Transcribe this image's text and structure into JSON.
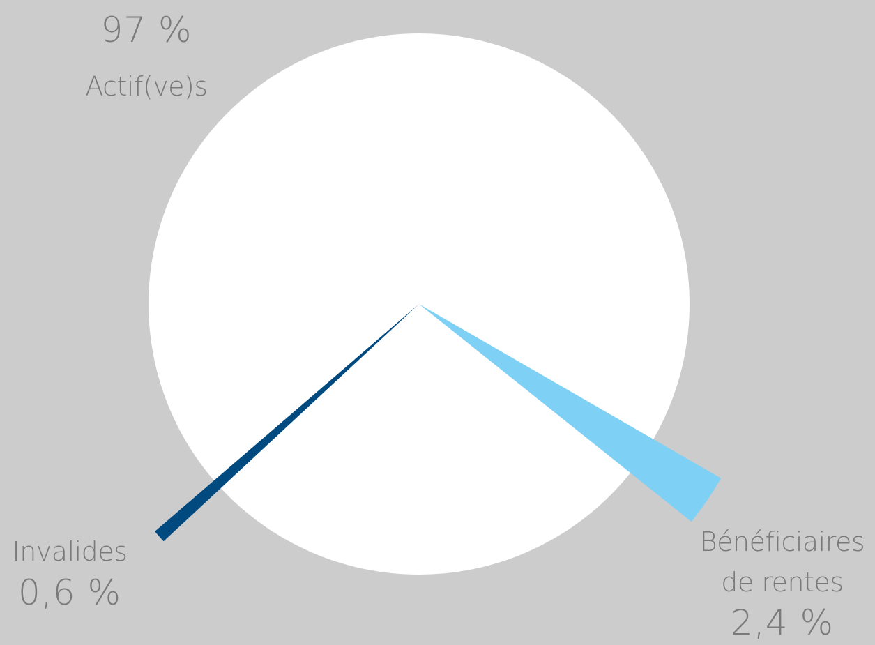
{
  "chart_data": {
    "type": "pie",
    "categories": [
      "Actif(ve)s",
      "Bénéficiaires de rentes",
      "Invalides"
    ],
    "values": [
      97,
      2.4,
      0.6
    ],
    "value_labels": [
      "97 %",
      "2,4 %",
      "0,6 %"
    ],
    "colors": [
      "#ffffff",
      "#7fd0f5",
      "#004a80"
    ]
  }
}
